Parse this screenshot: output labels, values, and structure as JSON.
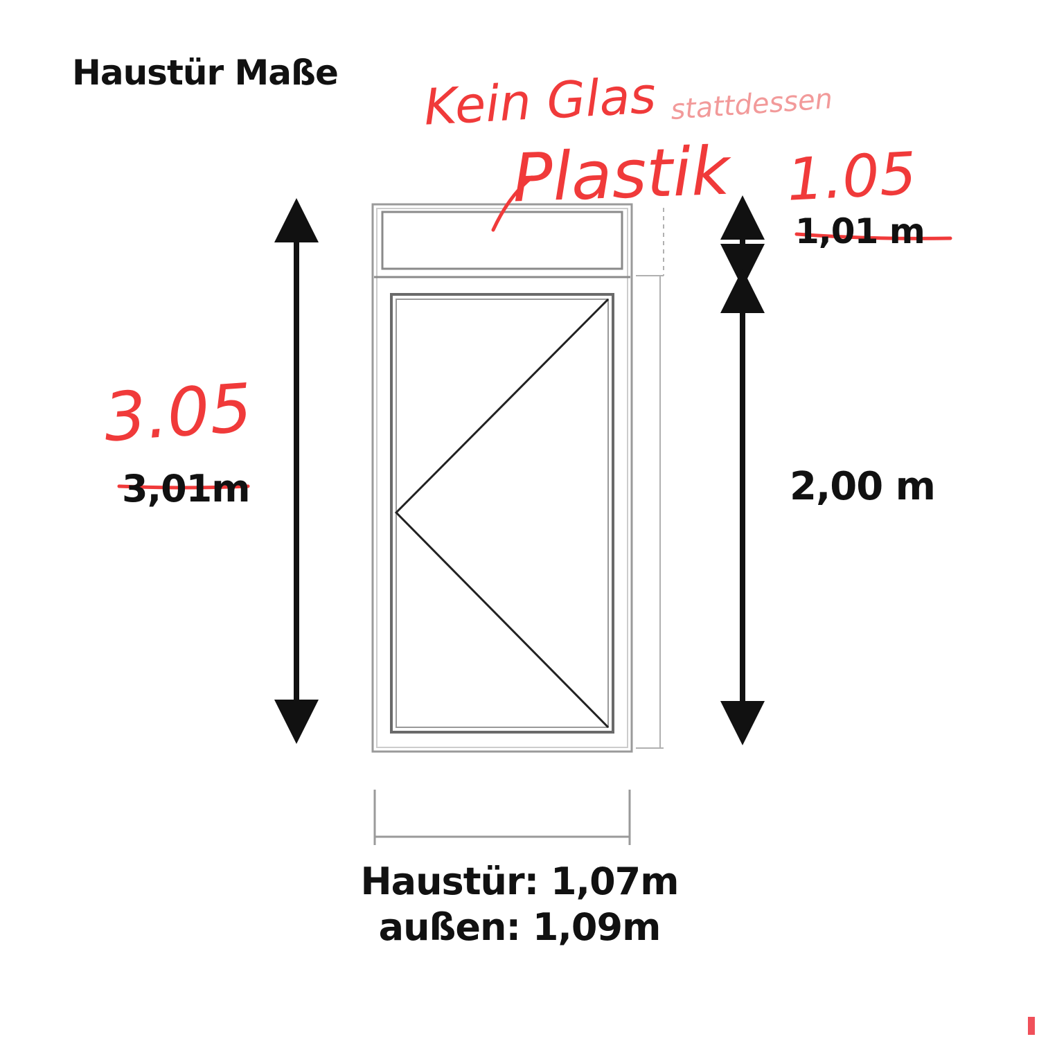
{
  "title": "Haustür Maße",
  "dimensions": {
    "top_section": "1,01 m",
    "total_height": "3,01m",
    "door_height": "2,00 m",
    "door_width_line1": "Haustür: 1,07m",
    "door_width_line2": "außen: 1,09m"
  },
  "handwritten_notes": {
    "no_glass": "Kein Glas",
    "instead": "stattdessen",
    "plastic": "Plastik",
    "top_corrected": "1.05",
    "height_corrected": "3.05"
  },
  "colors": {
    "ink": "#111111",
    "correction": "#f03a3a",
    "frame_line": "#9a9a9a"
  }
}
